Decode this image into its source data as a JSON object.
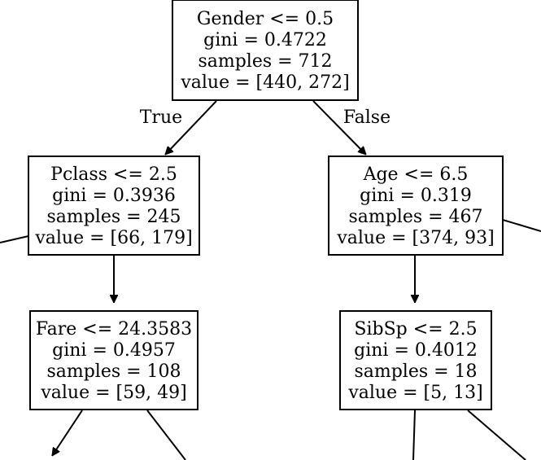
{
  "tree": {
    "nodes": [
      {
        "id": "root",
        "lines": [
          "Gender <= 0.5",
          "gini = 0.4722",
          "samples = 712",
          "value = [440, 272]"
        ]
      },
      {
        "id": "left",
        "lines": [
          "Pclass <= 2.5",
          "gini = 0.3936",
          "samples = 245",
          "value = [66, 179]"
        ]
      },
      {
        "id": "right",
        "lines": [
          "Age <= 6.5",
          "gini = 0.319",
          "samples = 467",
          "value = [374, 93]"
        ]
      },
      {
        "id": "left_left",
        "lines": [
          "Fare <= 24.3583",
          "gini = 0.4957",
          "samples = 108",
          "value = [59, 49]"
        ]
      },
      {
        "id": "right_left",
        "lines": [
          "SibSp <= 2.5",
          "gini = 0.4012",
          "samples = 18",
          "value = [5, 13]"
        ]
      }
    ],
    "edge_labels": {
      "true_label": "True",
      "false_label": "False"
    }
  }
}
